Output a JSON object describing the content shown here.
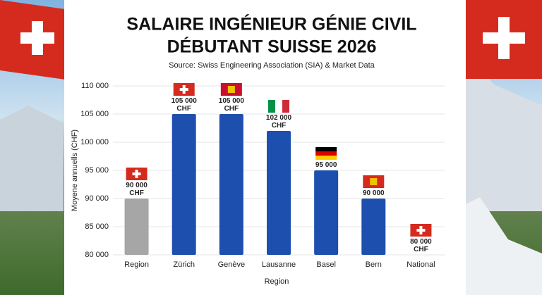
{
  "chart_data": {
    "type": "bar",
    "title_lines": [
      "SALAIRE INGÉNIEUR GÉNIE CIVIL",
      "DÉBUTANT SUISSE 2026"
    ],
    "subtitle": "Source: Swiss Engineering Association (SIA) & Market Data",
    "x_label": "Region",
    "y_label": "Moyene annuells (CHF)",
    "categories": [
      "Region",
      "Zürich",
      "Genève",
      "Lausanne",
      "Basel",
      "Bern",
      "National"
    ],
    "values": [
      90000,
      105000,
      105000,
      102000,
      95000,
      90000,
      80000
    ],
    "value_labels": [
      "90 000 CHF",
      "105 000 CHF",
      "105 000 CHF",
      "102 000 CHF",
      "95 000",
      "90 000",
      "80 000 CHF"
    ],
    "colors": [
      "#a6a6a6",
      "#1d4fae",
      "#1d4fae",
      "#1d4fae",
      "#1d4fae",
      "#1d4fae",
      "#2c4a7c"
    ],
    "ylim": [
      80000,
      110000
    ],
    "yticks": [
      {
        "value": 80000,
        "label": "80 000"
      },
      {
        "value": 85000,
        "label": "85 000"
      },
      {
        "value": 90000,
        "label": "90 000"
      },
      {
        "value": 95000,
        "label": "95 000"
      },
      {
        "value": 100000,
        "label": "100 000"
      },
      {
        "value": 105000,
        "label": "105 000"
      },
      {
        "value": 110000,
        "label": "110 000"
      }
    ],
    "grid": true
  }
}
